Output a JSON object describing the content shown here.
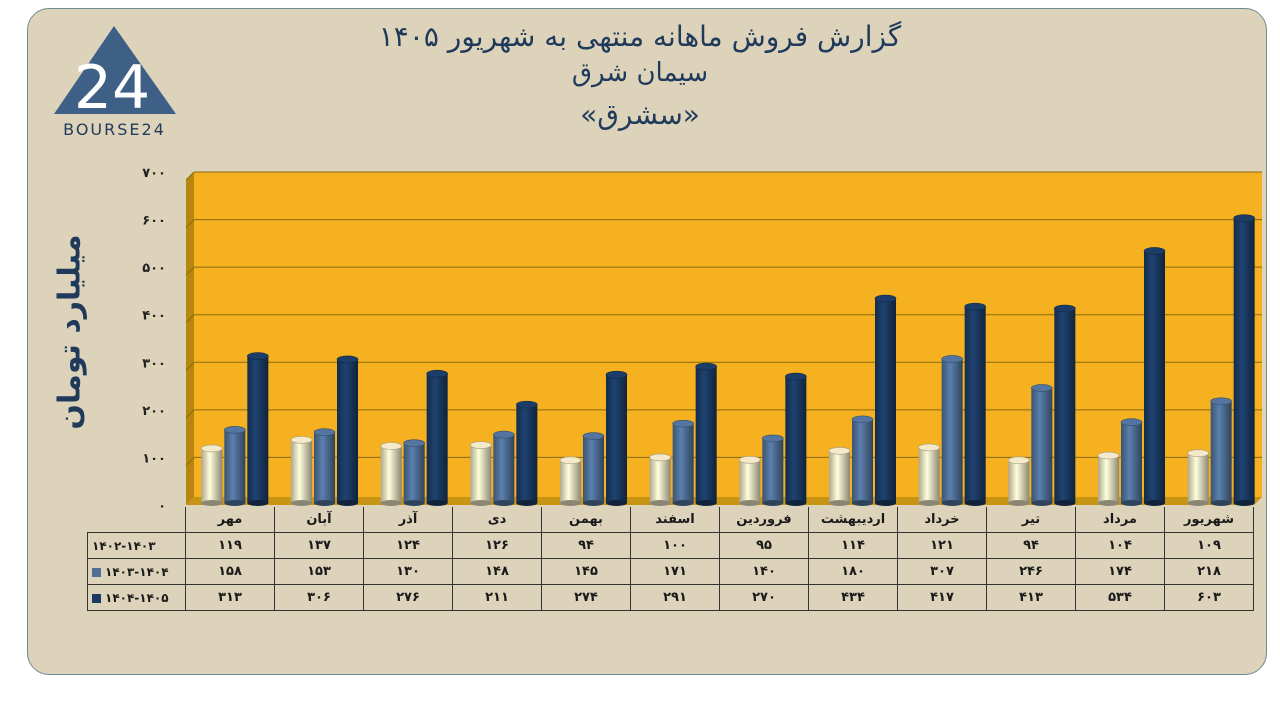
{
  "title": {
    "line1": "گزارش  فروش ماهانه منتهی به شهریور ۱۴۰۵",
    "line2": "سیمان شرق",
    "line3": "«سشرق»"
  },
  "logo": {
    "text": "BOURSE24",
    "mark": "24"
  },
  "colors": {
    "frame_bg": "#ddd3bb",
    "plot_bg": "#f5b11f",
    "series1": "#e8dfbf",
    "series2": "#4f6f97",
    "series3": "#1b3a63"
  },
  "chart_data": {
    "type": "bar",
    "ylabel": "میلیارد تومان",
    "ylim": [
      0,
      700
    ],
    "yticks": [
      0,
      100,
      200,
      300,
      400,
      500,
      600,
      700
    ],
    "ytick_labels": [
      "۰",
      "۱۰۰",
      "۲۰۰",
      "۳۰۰",
      "۴۰۰",
      "۵۰۰",
      "۶۰۰",
      "۷۰۰"
    ],
    "grid": true,
    "categories": [
      "مهر",
      "آبان",
      "آذر",
      "دی",
      "بهمن",
      "اسفند",
      "فروردین",
      "اردیبهشت",
      "خرداد",
      "تیر",
      "مرداد",
      "شهریور"
    ],
    "series": [
      {
        "name": "۱۴۰۲-۱۴۰۳",
        "values": [
          119,
          137,
          124,
          126,
          94,
          100,
          95,
          114,
          121,
          94,
          104,
          109
        ],
        "labels": [
          "۱۱۹",
          "۱۳۷",
          "۱۲۴",
          "۱۲۶",
          "۹۴",
          "۱۰۰",
          "۹۵",
          "۱۱۴",
          "۱۲۱",
          "۹۴",
          "۱۰۴",
          "۱۰۹"
        ]
      },
      {
        "name": "۱۴۰۳-۱۴۰۴",
        "values": [
          158,
          153,
          130,
          148,
          145,
          171,
          140,
          180,
          307,
          246,
          174,
          218
        ],
        "labels": [
          "۱۵۸",
          "۱۵۳",
          "۱۳۰",
          "۱۴۸",
          "۱۴۵",
          "۱۷۱",
          "۱۴۰",
          "۱۸۰",
          "۳۰۷",
          "۲۴۶",
          "۱۷۴",
          "۲۱۸"
        ]
      },
      {
        "name": "۱۴۰۴-۱۴۰۵",
        "values": [
          313,
          306,
          276,
          211,
          274,
          291,
          270,
          434,
          417,
          413,
          534,
          603
        ],
        "labels": [
          "۳۱۳",
          "۳۰۶",
          "۲۷۶",
          "۲۱۱",
          "۲۷۴",
          "۲۹۱",
          "۲۷۰",
          "۴۳۴",
          "۴۱۷",
          "۴۱۳",
          "۵۳۴",
          "۶۰۳"
        ]
      }
    ]
  }
}
